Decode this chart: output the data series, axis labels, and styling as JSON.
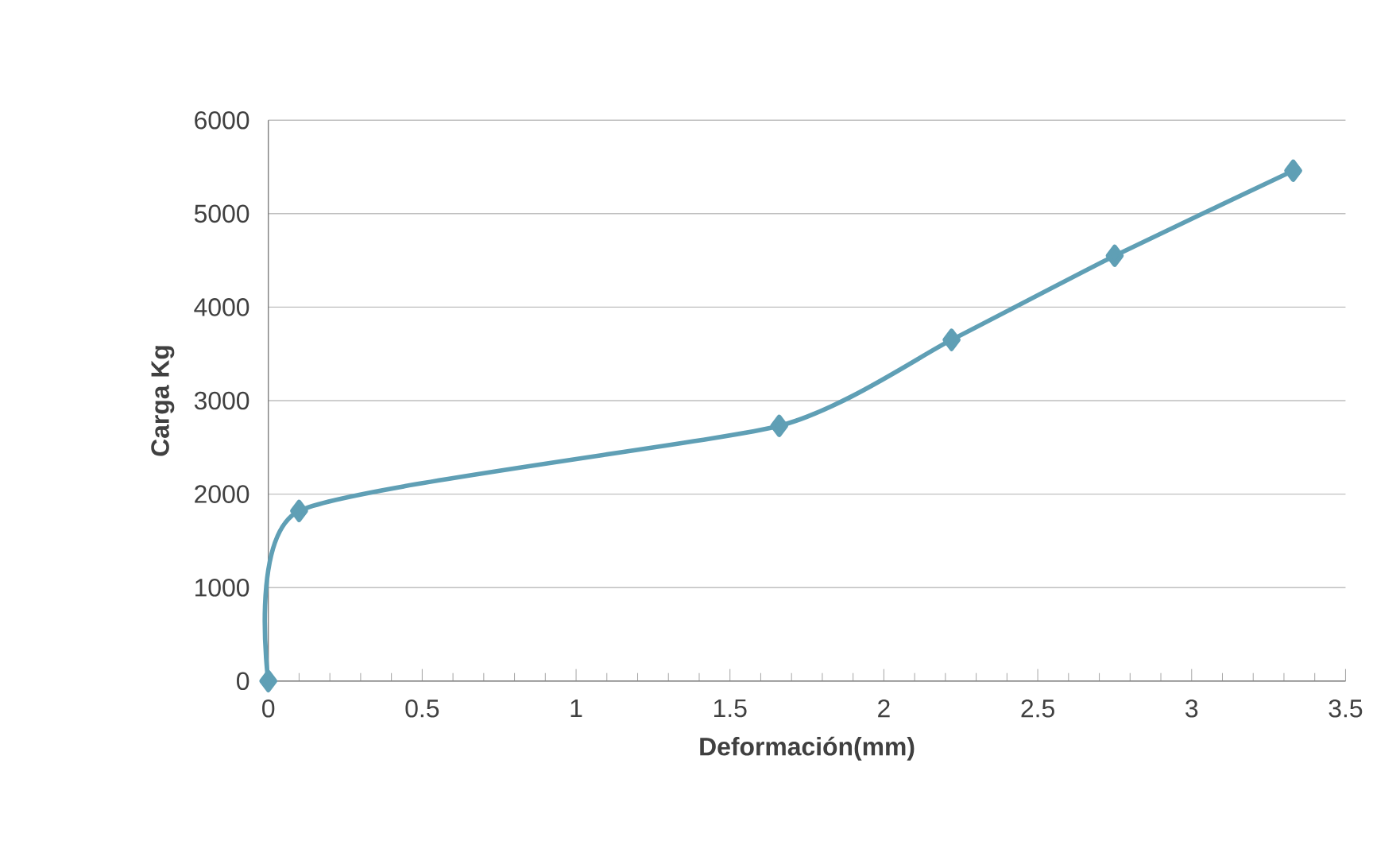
{
  "chart_data": {
    "type": "line",
    "xlabel": "Deformación(mm)",
    "ylabel": "Carga Kg",
    "x": [
      0,
      0.1,
      1.66,
      2.22,
      2.75,
      3.33
    ],
    "series": [
      {
        "color": "#5f9fb5",
        "values": [
          0,
          1820,
          2730,
          3650,
          4550,
          5460
        ]
      }
    ],
    "xlim": [
      0,
      3.5
    ],
    "xticks": [
      0,
      0.5,
      1,
      1.5,
      2,
      2.5,
      3,
      3.5
    ],
    "ylim": [
      0,
      6000
    ],
    "yticks": [
      0,
      1000,
      2000,
      3000,
      4000,
      5000,
      6000
    ],
    "grid": "y",
    "marker": "diamond",
    "line_style": "solid"
  }
}
